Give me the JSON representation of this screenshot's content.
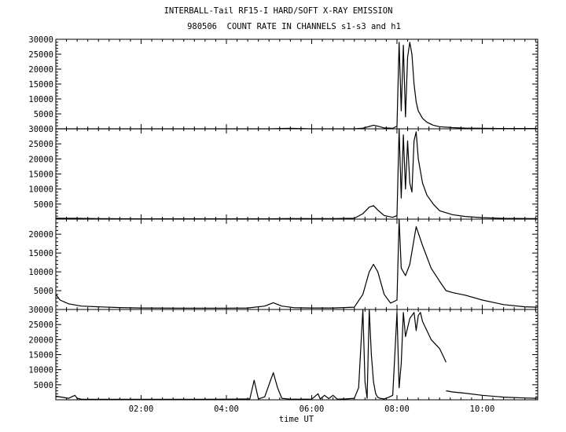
{
  "chart_data": {
    "type": "line",
    "title": "INTERBALL-Tail RF15-I HARD/SOFT X-RAY EMISSION",
    "subtitle": "980506  COUNT RATE IN CHANNELS s1-s3 and h1",
    "xlabel": "time UT",
    "xlim": [
      0,
      11.3
    ],
    "x_ticks": [
      2,
      4,
      6,
      8,
      10
    ],
    "x_tick_labels": [
      "02:00",
      "04:00",
      "06:00",
      "08:00",
      "10:00"
    ],
    "grid": false,
    "panels": [
      {
        "ylim": [
          0,
          30000
        ],
        "y_ticks": [
          5000,
          10000,
          15000,
          20000,
          25000,
          30000
        ],
        "y_tick_labels": [
          "5000",
          "10000",
          "15000",
          "20000",
          "25000",
          "30000"
        ],
        "series": [
          {
            "x": [
              0,
              1.0,
              2.0,
              3.0,
              4.0,
              5.0,
              5.5,
              6.0,
              6.5,
              7.0,
              7.2,
              7.35,
              7.45,
              7.55,
              7.7,
              7.9,
              8.0,
              8.05,
              8.1,
              8.15,
              8.2,
              8.25,
              8.3,
              8.35,
              8.4,
              8.45,
              8.5,
              8.6,
              8.7,
              8.85,
              9.0,
              9.3,
              9.6,
              10.0,
              10.5,
              11.3
            ],
            "y": [
              0,
              0,
              0,
              0,
              0,
              0,
              150,
              0,
              0,
              0,
              200,
              800,
              1200,
              900,
              300,
              150,
              900,
              29000,
              6000,
              28000,
              4000,
              24000,
              29000,
              25000,
              15000,
              9000,
              6000,
              3500,
              2200,
              1200,
              700,
              400,
              250,
              150,
              100,
              100
            ]
          }
        ]
      },
      {
        "ylim": [
          0,
          30000
        ],
        "y_ticks": [
          5000,
          10000,
          15000,
          20000,
          25000,
          30000
        ],
        "y_tick_labels": [
          "5000",
          "10000",
          "15000",
          "20000",
          "25000",
          "30000"
        ],
        "series": [
          {
            "x": [
              0,
              0.5,
              1.0,
              2.0,
              3.0,
              4.0,
              5.0,
              5.5,
              6.0,
              6.5,
              7.0,
              7.2,
              7.35,
              7.45,
              7.55,
              7.7,
              7.9,
              8.0,
              8.05,
              8.1,
              8.15,
              8.2,
              8.25,
              8.3,
              8.35,
              8.4,
              8.45,
              8.5,
              8.6,
              8.7,
              8.85,
              9.0,
              9.3,
              9.6,
              10.0,
              10.5,
              11.3
            ],
            "y": [
              300,
              250,
              150,
              100,
              100,
              100,
              100,
              200,
              150,
              150,
              300,
              1800,
              4000,
              4500,
              3000,
              1200,
              600,
              1200,
              30000,
              7000,
              28000,
              10000,
              26000,
              12000,
              9000,
              26000,
              29000,
              20000,
              12000,
              8000,
              5000,
              2800,
              1500,
              900,
              500,
              250,
              150
            ]
          }
        ]
      },
      {
        "ylim": [
          0,
          24000
        ],
        "y_ticks": [
          5000,
          10000,
          15000,
          20000
        ],
        "y_tick_labels": [
          "5000",
          "10000",
          "15000",
          "20000"
        ],
        "series": [
          {
            "x": [
              0,
              0.1,
              0.3,
              0.6,
              1.0,
              1.5,
              2.0,
              3.0,
              4.0,
              4.5,
              4.9,
              5.1,
              5.3,
              5.6,
              6.0,
              6.5,
              7.0,
              7.2,
              7.35,
              7.45,
              7.55,
              7.7,
              7.85,
              8.0,
              8.05,
              8.1,
              8.2,
              8.3,
              8.45,
              8.6,
              8.8,
              9.0,
              9.15,
              9.3,
              9.6,
              10.0,
              10.5,
              11.0,
              11.3
            ],
            "y": [
              4000,
              2500,
              1500,
              900,
              700,
              500,
              400,
              350,
              350,
              400,
              900,
              1800,
              900,
              450,
              400,
              400,
              600,
              4000,
              10000,
              12000,
              10000,
              4000,
              1700,
              2500,
              24000,
              11000,
              9000,
              12000,
              22000,
              17000,
              11000,
              7500,
              5000,
              4500,
              3800,
              2500,
              1300,
              700,
              600
            ]
          }
        ]
      },
      {
        "ylim": [
          0,
          30000
        ],
        "y_ticks": [
          5000,
          10000,
          15000,
          20000,
          25000,
          30000
        ],
        "y_tick_labels": [
          "5000",
          "10000",
          "15000",
          "20000",
          "25000",
          "30000"
        ],
        "series": [
          {
            "x": [
              0,
              0.3,
              0.45,
              0.5,
              0.6,
              1.0,
              2.0,
              3.0,
              4.0,
              4.55,
              4.65,
              4.75,
              4.9,
              5.0,
              5.1,
              5.2,
              5.3,
              5.5,
              6.0,
              6.15,
              6.2,
              6.3,
              6.4,
              6.5,
              6.6,
              6.8,
              7.0,
              7.1,
              7.2,
              7.25,
              7.3,
              7.35,
              7.4,
              7.45,
              7.5,
              7.55,
              7.6,
              7.7,
              7.8,
              7.9,
              8.0,
              8.05,
              8.1,
              8.15,
              8.2,
              8.3,
              8.4,
              8.45,
              8.5,
              8.55,
              8.6,
              8.7,
              8.8,
              9.0,
              9.1,
              9.15
            ],
            "y": [
              1200,
              500,
              1500,
              500,
              200,
              150,
              150,
              150,
              200,
              300,
              6500,
              300,
              1000,
              5000,
              9000,
              4000,
              500,
              200,
              200,
              2000,
              300,
              1500,
              400,
              1500,
              200,
              300,
              500,
              4000,
              30000,
              6000,
              500,
              30000,
              15000,
              6000,
              2000,
              800,
              500,
              300,
              800,
              1500,
              29000,
              4000,
              12000,
              29000,
              21000,
              27000,
              29000,
              23000,
              28000,
              29000,
              26000,
              23000,
              20000,
              17000,
              14000,
              12500
            ]
          },
          {
            "x": [
              9.15,
              9.3,
              9.6,
              10.0,
              10.5,
              11.0,
              11.3
            ],
            "y": [
              3000,
              2600,
              2200,
              1500,
              900,
              600,
              500
            ]
          }
        ]
      }
    ]
  }
}
